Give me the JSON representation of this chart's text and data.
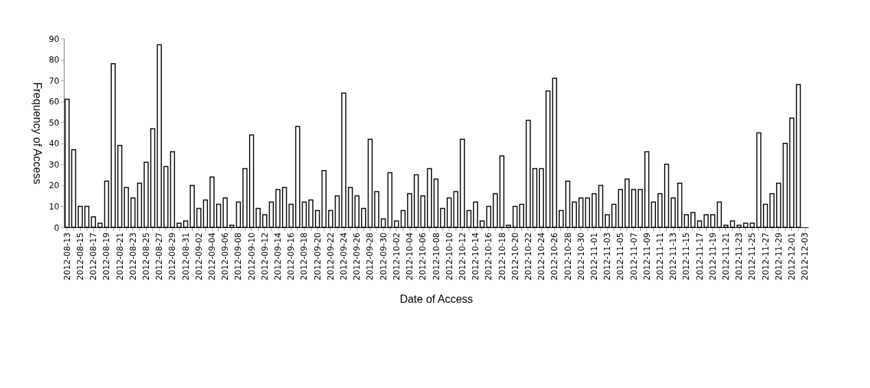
{
  "chart_data": {
    "type": "bar",
    "xlabel": "Date of Access",
    "ylabel": "Frequency of Access",
    "categories": [
      "2012-08-13",
      null,
      "2012-08-15",
      null,
      "2012-08-17",
      null,
      "2012-08-19",
      null,
      "2012-08-21",
      null,
      "2012-08-23",
      null,
      "2012-08-25",
      null,
      "2012-08-27",
      null,
      "2012-08-29",
      null,
      "2012-08-31",
      null,
      "2012-09-02",
      null,
      "2012-09-04",
      null,
      "2012-09-06",
      null,
      "2012-09-08",
      null,
      "2012-09-10",
      null,
      "2012-09-12",
      null,
      "2012-09-14",
      null,
      "2012-09-16",
      null,
      "2012-09-18",
      null,
      "2012-09-20",
      null,
      "2012-09-22",
      null,
      "2012-09-24",
      null,
      "2012-09-26",
      null,
      "2012-09-28",
      null,
      "2012-09-30",
      null,
      "2012-10-02",
      null,
      "2012-10-04",
      null,
      "2012-10-06",
      null,
      "2012-10-08",
      null,
      "2012-10-10",
      null,
      "2012-10-12",
      null,
      "2012-10-14",
      null,
      "2012-10-16",
      null,
      "2012-10-18",
      null,
      "2012-10-20",
      null,
      "2012-10-22",
      null,
      "2012-10-24",
      null,
      "2012-10-26",
      null,
      "2012-10-28",
      null,
      "2012-10-30",
      null,
      "2012-11-01",
      null,
      "2012-11-03",
      null,
      "2012-11-05",
      null,
      "2012-11-07",
      null,
      "2012-11-09",
      null,
      "2012-11-11",
      null,
      "2012-11-13",
      null,
      "2012-11-15",
      null,
      "2012-11-17",
      null,
      "2012-11-19",
      null,
      "2012-11-21",
      null,
      "2012-11-23",
      null,
      "2012-11-25",
      null,
      "2012-11-27",
      null,
      "2012-11-29",
      null,
      "2012-12-01",
      null,
      "2012-12-03"
    ],
    "values": [
      61,
      37,
      10,
      10,
      5,
      2,
      22,
      78,
      39,
      19,
      14,
      21,
      31,
      47,
      87,
      29,
      36,
      2,
      3,
      20,
      9,
      13,
      24,
      11,
      14,
      1,
      12,
      28,
      44,
      9,
      6,
      12,
      18,
      19,
      11,
      48,
      12,
      13,
      8,
      27,
      8,
      15,
      64,
      19,
      15,
      9,
      42,
      17,
      4,
      26,
      3,
      8,
      16,
      25,
      15,
      28,
      23,
      9,
      14,
      17,
      42,
      8,
      12,
      3,
      10,
      16,
      34,
      1,
      10,
      11,
      51,
      28,
      28,
      65,
      71,
      8,
      22,
      12,
      14,
      14,
      16,
      20,
      6,
      11,
      18,
      23,
      18,
      18,
      36,
      12,
      16,
      30,
      14,
      21,
      6,
      7,
      3,
      6,
      6,
      12,
      1,
      3,
      1,
      2,
      2,
      45,
      11,
      16,
      21,
      40,
      52,
      68,
      null
    ],
    "color": "#ffffff",
    "ylim": [
      0,
      90
    ],
    "yticks": [
      0,
      10,
      20,
      30,
      40,
      50,
      60,
      70,
      80,
      90
    ],
    "grid": false
  }
}
